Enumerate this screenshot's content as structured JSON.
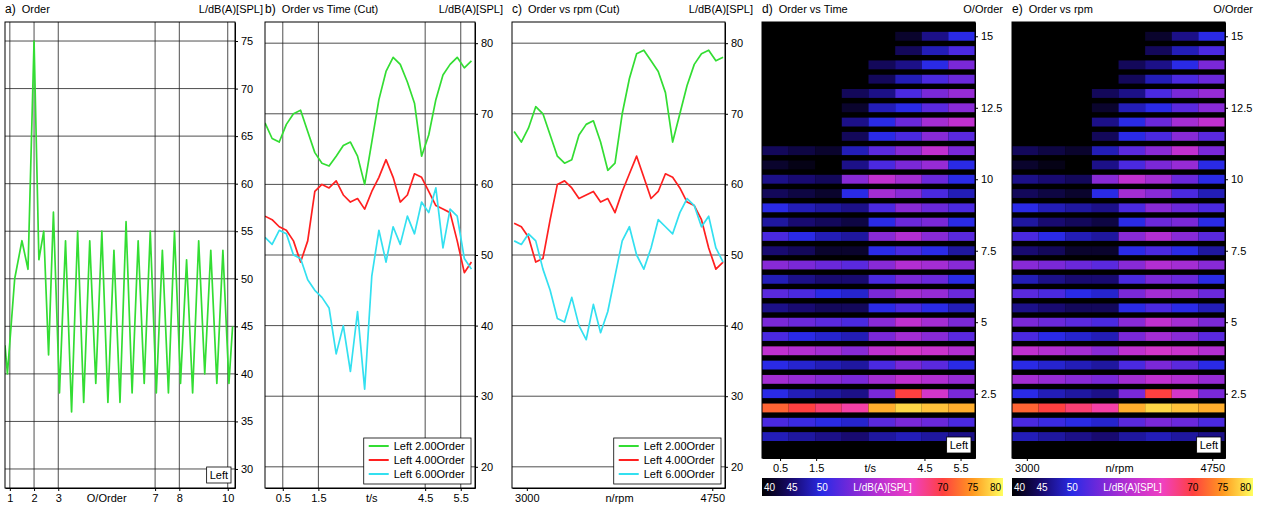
{
  "chart_data": [
    {
      "type": "line",
      "panel": "a)",
      "title": "Order",
      "y_label": "L/dB(A)[SPL]",
      "x_label": "O/Order",
      "annotation": "Left",
      "x": [
        0.8,
        0.9,
        1.2,
        1.5,
        1.75,
        2,
        2.2,
        2.4,
        2.6,
        2.8,
        3.05,
        3.3,
        3.55,
        3.8,
        4.05,
        4.3,
        4.55,
        4.8,
        5.05,
        5.3,
        5.55,
        5.8,
        6.05,
        6.3,
        6.55,
        6.8,
        7.05,
        7.3,
        7.55,
        7.8,
        8.05,
        8.3,
        8.55,
        8.8,
        9.05,
        9.3,
        9.55,
        9.8,
        10.05,
        10.2
      ],
      "series": [
        {
          "color": "#33dd33",
          "values": [
            43,
            40,
            50,
            54,
            51,
            75,
            52,
            55,
            42,
            57,
            38,
            54,
            36,
            55,
            37,
            54,
            39,
            55,
            37,
            53,
            37,
            56,
            38,
            54,
            39,
            55,
            38,
            53,
            38,
            55,
            39,
            52,
            38,
            54,
            40,
            53,
            39,
            53,
            39,
            45
          ]
        }
      ],
      "xlim": [
        0.8,
        10.3
      ],
      "xticks": [
        1,
        2,
        3,
        7,
        8,
        10
      ],
      "ylim": [
        28,
        77
      ],
      "yticks": [
        30,
        35,
        40,
        45,
        50,
        55,
        60,
        65,
        70,
        75
      ],
      "grid": true
    },
    {
      "type": "line",
      "panel": "b)",
      "title": "Order vs Time (Cut)",
      "y_label": "L/dB(A)[SPL]",
      "x_label": "t/s",
      "x": [
        0,
        0.2,
        0.4,
        0.6,
        0.8,
        1,
        1.2,
        1.4,
        1.6,
        1.8,
        2,
        2.2,
        2.4,
        2.6,
        2.8,
        3,
        3.2,
        3.4,
        3.6,
        3.8,
        4,
        4.2,
        4.4,
        4.6,
        4.8,
        5,
        5.2,
        5.4,
        5.6,
        5.8
      ],
      "series": [
        {
          "name": "Left 2.00Order",
          "color": "#33dd33",
          "values": [
            68.7,
            66.5,
            66,
            68.5,
            70,
            70.5,
            67.5,
            64.5,
            63,
            62.6,
            64,
            65.5,
            66,
            64,
            60,
            66,
            72,
            76,
            78,
            77,
            74.5,
            71.5,
            64,
            67,
            72,
            75.5,
            77,
            78,
            76.5,
            77.5
          ]
        },
        {
          "name": "Left 4.00Order",
          "color": "#ff2020",
          "values": [
            55.5,
            55,
            54,
            53.5,
            52,
            49,
            52,
            59,
            60,
            59.5,
            60.5,
            58.5,
            57.5,
            58,
            56.5,
            59,
            61,
            63.5,
            61,
            57.5,
            58.5,
            61.5,
            61,
            59,
            57,
            56.5,
            56,
            52,
            47.5,
            49
          ]
        },
        {
          "name": "Left 6.00Order",
          "color": "#33e0f0",
          "values": [
            52.5,
            51.5,
            53.5,
            53,
            50,
            49.5,
            46.5,
            45,
            44,
            42.5,
            36,
            40,
            33.5,
            42,
            31,
            47,
            53.5,
            49,
            54,
            51.5,
            55.5,
            53,
            57.5,
            56,
            59.5,
            51,
            56.5,
            55.5,
            49.5,
            48
          ]
        }
      ],
      "xlim": [
        0,
        5.9
      ],
      "xticks": [
        0.5,
        1.5,
        4.5,
        5.5
      ],
      "ylim": [
        17,
        83
      ],
      "yticks": [
        20,
        30,
        40,
        50,
        60,
        70,
        80
      ],
      "grid": true,
      "legend": "lower right"
    },
    {
      "type": "line",
      "panel": "c)",
      "title": "Order vs rpm (Cut)",
      "y_label": "L/dB(A)[SPL]",
      "x_label": "n/rpm",
      "x": [
        2880,
        2948,
        3016,
        3084,
        3152,
        3220,
        3288,
        3356,
        3424,
        3492,
        3560,
        3628,
        3696,
        3764,
        3832,
        3900,
        3968,
        4036,
        4104,
        4172,
        4240,
        4308,
        4376,
        4444,
        4512,
        4580,
        4648,
        4716,
        4784,
        4852
      ],
      "series": [
        {
          "name": "Left 2.00Order",
          "color": "#33dd33",
          "values": [
            67.5,
            66,
            68,
            71,
            70,
            67,
            64,
            63,
            63.5,
            67,
            68.5,
            69,
            66,
            62,
            63,
            70,
            75,
            78.5,
            79,
            77.5,
            76,
            73,
            66,
            70,
            74,
            77,
            78.5,
            79,
            77.5,
            78
          ]
        },
        {
          "name": "Left 4.00Order",
          "color": "#ff2020",
          "values": [
            54.5,
            54,
            52.5,
            49,
            49.5,
            55,
            60,
            60.5,
            59.5,
            58,
            58.5,
            59,
            57.5,
            58,
            56,
            59,
            61.5,
            64,
            61,
            58,
            59,
            61.5,
            61,
            59.5,
            57.5,
            57,
            55,
            51,
            48,
            49
          ]
        },
        {
          "name": "Left 6.00Order",
          "color": "#33e0f0",
          "values": [
            52,
            51.5,
            53,
            52,
            48,
            45,
            41,
            40.5,
            44,
            40,
            38,
            43,
            39,
            42,
            47,
            52,
            54,
            50,
            48,
            51,
            55,
            54,
            53,
            56,
            58,
            57,
            54,
            55.5,
            51,
            49
          ]
        }
      ],
      "xlim": [
        2860,
        4870
      ],
      "xticks": [
        3000,
        4750
      ],
      "ylim": [
        17,
        83
      ],
      "yticks": [
        20,
        30,
        40,
        50,
        60,
        70,
        80
      ],
      "grid": "y",
      "legend": "lower right"
    },
    {
      "type": "heatmap",
      "panel": "d)",
      "title": "Order vs Time",
      "y_label": "O/Order",
      "x_label": "t/s",
      "annotation": "Left",
      "x": [
        0.37,
        1.11,
        1.84,
        2.58,
        3.32,
        4.06,
        4.79,
        5.53
      ],
      "y": [
        1,
        1.5,
        2,
        2.5,
        3,
        3.5,
        4,
        4.5,
        5,
        5.5,
        6,
        6.5,
        7,
        7.5,
        8,
        8.5,
        9,
        9.5,
        10,
        10.5,
        11,
        11.5,
        12,
        12.5,
        13,
        13.5,
        14,
        14.5,
        15
      ],
      "values": [
        [
          48,
          47,
          46,
          45,
          47,
          48,
          47,
          46
        ],
        [
          52,
          51,
          50,
          49,
          53,
          55,
          54,
          52
        ],
        [
          72,
          70,
          68,
          66,
          76,
          78,
          77,
          76
        ],
        [
          50,
          48,
          47,
          46,
          55,
          70,
          62,
          55
        ],
        [
          58,
          57,
          56,
          55,
          58,
          60,
          59,
          57
        ],
        [
          50,
          49,
          48,
          47,
          52,
          55,
          53,
          50
        ],
        [
          60,
          59,
          58,
          56,
          60,
          62,
          61,
          59
        ],
        [
          52,
          50,
          49,
          48,
          55,
          58,
          56,
          53
        ],
        [
          55,
          54,
          53,
          52,
          56,
          60,
          58,
          55
        ],
        [
          46,
          45,
          44,
          44,
          50,
          52,
          50,
          48
        ],
        [
          53,
          52,
          50,
          49,
          55,
          58,
          57,
          54
        ],
        [
          48,
          46,
          45,
          45,
          52,
          55,
          54,
          50
        ],
        [
          56,
          55,
          54,
          53,
          56,
          59,
          58,
          56
        ],
        [
          45,
          44,
          42,
          42,
          50,
          52,
          50,
          47
        ],
        [
          52,
          50,
          48,
          47,
          56,
          59,
          56,
          53
        ],
        [
          47,
          45,
          44,
          43,
          50,
          54,
          55,
          50
        ],
        [
          50,
          48,
          47,
          46,
          52,
          56,
          54,
          52
        ],
        [
          44,
          43,
          42,
          50,
          58,
          56,
          52,
          48
        ],
        [
          46,
          45,
          44,
          56,
          60,
          58,
          54,
          50
        ],
        [
          42,
          41,
          40,
          46,
          52,
          55,
          57,
          50
        ],
        [
          44,
          43,
          42,
          48,
          53,
          56,
          60,
          55
        ],
        [
          38,
          38,
          39,
          44,
          50,
          52,
          56,
          53
        ],
        [
          40,
          39,
          40,
          46,
          50,
          54,
          58,
          60
        ],
        [
          36,
          36,
          37,
          42,
          48,
          50,
          53,
          56
        ],
        [
          35,
          35,
          36,
          44,
          46,
          52,
          55,
          57
        ],
        [
          34,
          34,
          35,
          40,
          44,
          48,
          52,
          54
        ],
        [
          33,
          33,
          34,
          38,
          44,
          46,
          50,
          55
        ],
        [
          32,
          32,
          33,
          36,
          40,
          44,
          48,
          52
        ],
        [
          32,
          32,
          32,
          35,
          38,
          42,
          46,
          50
        ]
      ],
      "xlim": [
        0,
        5.9
      ],
      "xticks": [
        0.5,
        1.5,
        4.5,
        5.5
      ],
      "ylim": [
        0.25,
        15.5
      ],
      "yticks": [
        2.5,
        5,
        7.5,
        10,
        12.5,
        15
      ],
      "grid": false,
      "colorbar": {
        "range": [
          40,
          80
        ],
        "ticks": [
          40,
          45,
          50,
          70,
          75,
          80
        ],
        "label": "L/dB(A)[SPL]"
      }
    },
    {
      "type": "heatmap",
      "panel": "e)",
      "title": "Order vs rpm",
      "y_label": "O/Order",
      "x_label": "n/rpm",
      "annotation": "Left",
      "x": [
        2986,
        3237,
        3488,
        3740,
        3991,
        4242,
        4493,
        4744
      ],
      "y": [
        1,
        1.5,
        2,
        2.5,
        3,
        3.5,
        4,
        4.5,
        5,
        5.5,
        6,
        6.5,
        7,
        7.5,
        8,
        8.5,
        9,
        9.5,
        10,
        10.5,
        11,
        11.5,
        12,
        12.5,
        13,
        13.5,
        14,
        14.5,
        15
      ],
      "values": [
        [
          48,
          47,
          46,
          45,
          47,
          48,
          47,
          46
        ],
        [
          52,
          51,
          50,
          49,
          53,
          55,
          54,
          52
        ],
        [
          72,
          70,
          68,
          66,
          76,
          78,
          77,
          76
        ],
        [
          50,
          48,
          47,
          46,
          55,
          70,
          62,
          55
        ],
        [
          58,
          57,
          56,
          55,
          58,
          60,
          59,
          57
        ],
        [
          50,
          49,
          48,
          47,
          52,
          55,
          53,
          50
        ],
        [
          60,
          59,
          58,
          56,
          60,
          62,
          61,
          59
        ],
        [
          52,
          50,
          49,
          48,
          55,
          58,
          56,
          53
        ],
        [
          55,
          54,
          53,
          52,
          56,
          60,
          58,
          55
        ],
        [
          46,
          45,
          44,
          44,
          50,
          52,
          50,
          48
        ],
        [
          53,
          52,
          50,
          49,
          55,
          58,
          57,
          54
        ],
        [
          48,
          46,
          45,
          45,
          52,
          55,
          54,
          50
        ],
        [
          56,
          55,
          54,
          53,
          56,
          59,
          58,
          56
        ],
        [
          45,
          44,
          42,
          42,
          50,
          52,
          50,
          47
        ],
        [
          52,
          50,
          48,
          47,
          56,
          59,
          56,
          53
        ],
        [
          47,
          45,
          44,
          43,
          50,
          54,
          55,
          50
        ],
        [
          50,
          48,
          47,
          46,
          52,
          56,
          54,
          52
        ],
        [
          44,
          43,
          42,
          50,
          58,
          56,
          52,
          48
        ],
        [
          46,
          45,
          44,
          56,
          60,
          58,
          54,
          50
        ],
        [
          42,
          41,
          40,
          46,
          52,
          55,
          57,
          50
        ],
        [
          44,
          43,
          42,
          48,
          53,
          56,
          60,
          55
        ],
        [
          38,
          38,
          39,
          44,
          50,
          52,
          56,
          53
        ],
        [
          40,
          39,
          40,
          46,
          50,
          54,
          58,
          60
        ],
        [
          36,
          36,
          37,
          42,
          48,
          50,
          53,
          56
        ],
        [
          35,
          35,
          36,
          44,
          46,
          52,
          55,
          57
        ],
        [
          34,
          34,
          35,
          40,
          44,
          48,
          52,
          54
        ],
        [
          33,
          33,
          34,
          38,
          44,
          46,
          50,
          55
        ],
        [
          32,
          32,
          33,
          36,
          40,
          44,
          48,
          52
        ],
        [
          32,
          32,
          32,
          35,
          38,
          42,
          46,
          50
        ]
      ],
      "xlim": [
        2860,
        4870
      ],
      "xticks": [
        3000,
        4750
      ],
      "ylim": [
        0.25,
        15.5
      ],
      "yticks": [
        2.5,
        5,
        7.5,
        10,
        12.5,
        15
      ],
      "grid": false,
      "colorbar": {
        "range": [
          40,
          80
        ],
        "ticks": [
          40,
          45,
          50,
          70,
          75,
          80
        ],
        "label": "L/dB(A)[SPL]"
      }
    }
  ]
}
